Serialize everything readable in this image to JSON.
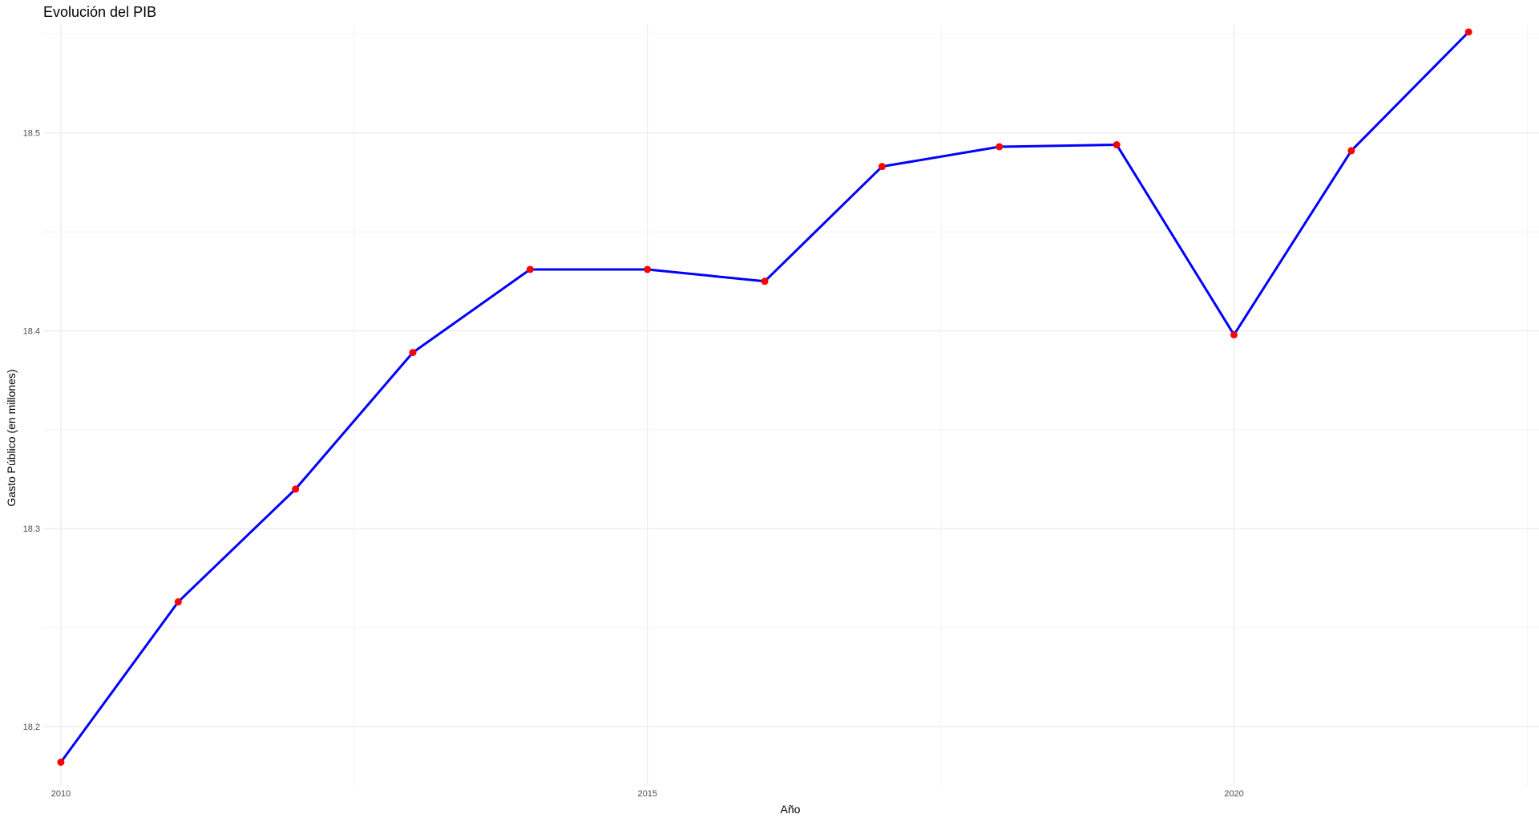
{
  "chart_data": {
    "type": "line",
    "title": "Evolución del PIB",
    "xlabel": "Año",
    "ylabel": "Gasto Público (en millones)",
    "x": [
      2010,
      2011,
      2012,
      2013,
      2014,
      2015,
      2016,
      2017,
      2018,
      2019,
      2020,
      2021,
      2022
    ],
    "series": [
      {
        "values": [
          18.182,
          18.263,
          18.32,
          18.389,
          18.431,
          18.431,
          18.425,
          18.483,
          18.493,
          18.494,
          18.398,
          18.491,
          18.551
        ]
      }
    ],
    "xlim": [
      2009.85,
      2022.6
    ],
    "ylim": [
      18.17,
      18.555
    ],
    "x_ticks": [
      {
        "value": 2010,
        "label": "2010"
      },
      {
        "value": 2015,
        "label": "2015"
      },
      {
        "value": 2020,
        "label": "2020"
      }
    ],
    "x_minor_ticks": [
      2012.5,
      2017.5,
      2022.5
    ],
    "y_ticks": [
      {
        "value": 18.2,
        "label": "18.2"
      },
      {
        "value": 18.3,
        "label": "18.3"
      },
      {
        "value": 18.4,
        "label": "18.4"
      },
      {
        "value": 18.5,
        "label": "18.5"
      }
    ],
    "y_minor_ticks": [
      18.25,
      18.35,
      18.45,
      18.55
    ],
    "grid": true,
    "legend": "none",
    "colors": {
      "line": "#0000ff",
      "points": "#ff0000",
      "grid_major": "#ebebeb",
      "grid_minor": "#f4f4f4",
      "text": "#000000",
      "tick_text": "#4d4d4d"
    }
  }
}
